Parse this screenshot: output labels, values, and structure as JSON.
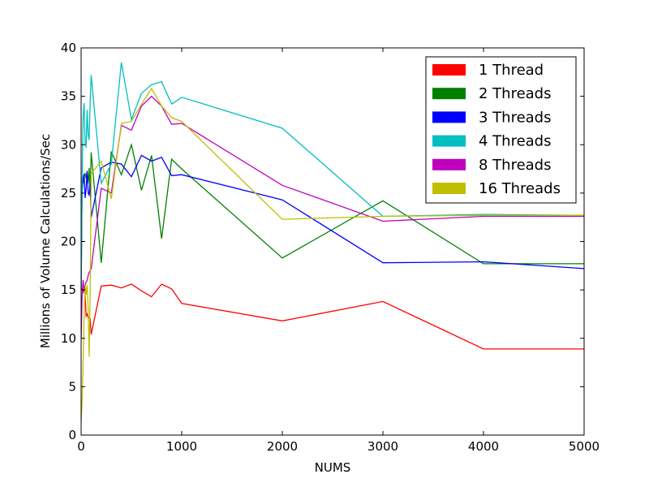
{
  "chart_data": {
    "type": "line",
    "xlabel": "NUMS",
    "ylabel": "Millions of Volume Calculations/Sec",
    "xlim": [
      0,
      5000
    ],
    "ylim": [
      0,
      40
    ],
    "xticks": [
      0,
      1000,
      2000,
      3000,
      4000,
      5000
    ],
    "yticks": [
      0,
      5,
      10,
      15,
      20,
      25,
      30,
      35,
      40
    ],
    "grid": false,
    "legend_position": "top-right",
    "series": [
      {
        "name": "1 Thread",
        "color": "#ff0000",
        "x": [
          1,
          10,
          20,
          30,
          40,
          50,
          60,
          70,
          80,
          90,
          100,
          200,
          300,
          400,
          500,
          600,
          700,
          800,
          900,
          1000,
          2000,
          3000,
          4000,
          5000
        ],
        "y": [
          15.0,
          15.1,
          14.8,
          15.3,
          14.2,
          12.3,
          12.5,
          12.1,
          12.2,
          12.0,
          10.4,
          15.4,
          15.5,
          15.2,
          15.6,
          14.9,
          14.3,
          15.6,
          15.1,
          13.6,
          11.8,
          13.8,
          8.9,
          8.9
        ]
      },
      {
        "name": "2 Threads",
        "color": "#008000",
        "x": [
          1,
          10,
          20,
          30,
          40,
          50,
          60,
          70,
          80,
          90,
          100,
          200,
          300,
          400,
          500,
          600,
          700,
          800,
          900,
          1000,
          2000,
          3000,
          4000,
          5000
        ],
        "y": [
          24.0,
          26.5,
          26.0,
          26.8,
          27.0,
          26.5,
          27.2,
          26.0,
          27.6,
          25.0,
          29.2,
          17.8,
          29.3,
          26.9,
          30.0,
          25.3,
          28.9,
          20.3,
          28.5,
          27.5,
          18.3,
          24.2,
          17.7,
          17.7
        ]
      },
      {
        "name": "3 Threads",
        "color": "#0000ff",
        "x": [
          1,
          10,
          20,
          30,
          40,
          50,
          60,
          70,
          80,
          90,
          100,
          200,
          300,
          400,
          500,
          600,
          700,
          800,
          900,
          1000,
          2000,
          3000,
          4000,
          5000
        ],
        "y": [
          15.0,
          25.0,
          26.5,
          27.0,
          24.5,
          25.5,
          27.3,
          25.0,
          24.8,
          26.0,
          22.5,
          27.6,
          28.2,
          28.0,
          26.7,
          28.9,
          28.3,
          28.7,
          26.8,
          26.9,
          24.3,
          17.8,
          17.9,
          17.2
        ]
      },
      {
        "name": "4 Threads",
        "color": "#00bfbf",
        "x": [
          1,
          10,
          20,
          30,
          40,
          50,
          60,
          70,
          80,
          90,
          100,
          200,
          300,
          400,
          500,
          600,
          700,
          800,
          900,
          1000,
          2000,
          3000,
          4000,
          5000
        ],
        "y": [
          15.2,
          26.0,
          33.0,
          34.3,
          30.0,
          29.8,
          33.6,
          31.0,
          30.5,
          34.5,
          37.2,
          26.0,
          28.0,
          38.5,
          32.6,
          35.3,
          36.2,
          36.5,
          34.2,
          34.9,
          31.7,
          22.6,
          22.8,
          22.7
        ]
      },
      {
        "name": "8 Threads",
        "color": "#bf00bf",
        "x": [
          1,
          10,
          20,
          30,
          40,
          50,
          60,
          70,
          80,
          90,
          100,
          200,
          300,
          400,
          500,
          600,
          700,
          800,
          900,
          1000,
          2000,
          3000,
          4000,
          5000
        ],
        "y": [
          10.0,
          14.5,
          16.0,
          15.0,
          15.5,
          15.8,
          16.0,
          16.5,
          16.8,
          17.0,
          17.2,
          25.5,
          25.0,
          32.0,
          31.5,
          34.0,
          35.0,
          34.0,
          32.1,
          32.2,
          25.8,
          22.1,
          22.6,
          22.6
        ]
      },
      {
        "name": "16 Threads",
        "color": "#bfbf00",
        "x": [
          1,
          10,
          20,
          30,
          40,
          50,
          60,
          70,
          80,
          90,
          100,
          200,
          300,
          400,
          500,
          600,
          700,
          800,
          900,
          1000,
          2000,
          3000,
          4000,
          5000
        ],
        "y": [
          1.5,
          3.5,
          7.5,
          12.5,
          15.5,
          14.5,
          15.5,
          13.0,
          8.1,
          15.0,
          27.0,
          28.3,
          24.4,
          32.2,
          32.4,
          34.2,
          35.8,
          34.0,
          32.8,
          32.4,
          22.3,
          22.6,
          22.7,
          22.7
        ]
      }
    ]
  }
}
